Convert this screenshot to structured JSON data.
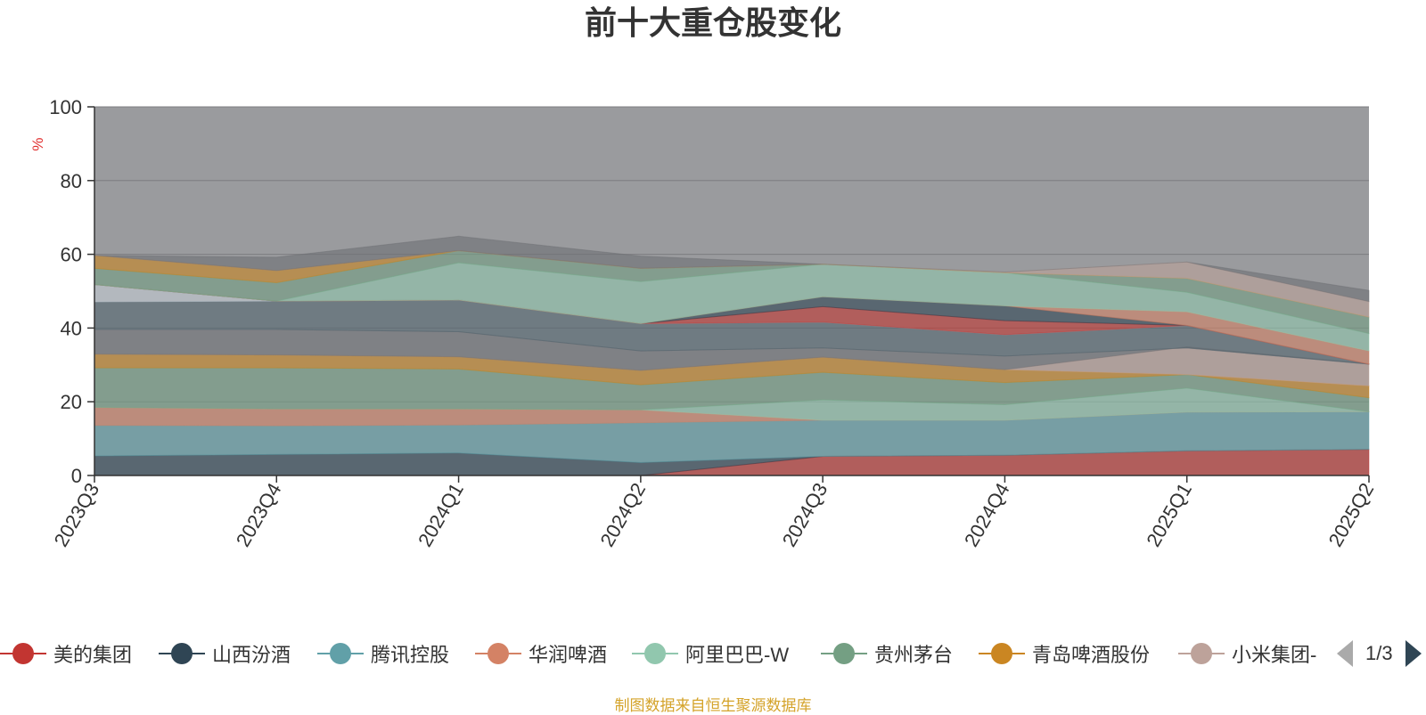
{
  "chart_data": {
    "type": "area",
    "title": "前十大重仓股变化",
    "ylabel": "%",
    "xlabel": "",
    "ylim": [
      0,
      100
    ],
    "yticks": [
      0,
      20,
      40,
      60,
      80,
      100
    ],
    "grid": true,
    "categories": [
      "2023Q3",
      "2023Q4",
      "2024Q1",
      "2024Q2",
      "2024Q3",
      "2024Q4",
      "2025Q1",
      "2025Q2"
    ],
    "series": [
      {
        "name": "美的集团",
        "color": "#c23531",
        "values": [
          0,
          0,
          0,
          0,
          5.2,
          5.5,
          6.7,
          7.1
        ]
      },
      {
        "name": "山西汾酒",
        "color": "#2f4554",
        "values": [
          5.3,
          5.7,
          6.1,
          3.5,
          0,
          0,
          0,
          0
        ]
      },
      {
        "name": "腾讯控股",
        "color": "#61a0a8",
        "values": [
          8.3,
          7.8,
          7.6,
          10.8,
          9.8,
          9.5,
          10.5,
          10.2
        ]
      },
      {
        "name": "华润啤酒",
        "color": "#d48265",
        "values": [
          4.9,
          4.6,
          4.4,
          3.5,
          0,
          0,
          0,
          0
        ]
      },
      {
        "name": "阿里巴巴-W",
        "color": "#91c7ae",
        "values": [
          0,
          0,
          0,
          0,
          5.5,
          4.2,
          6.5,
          0
        ]
      },
      {
        "name": "贵州茅台",
        "color": "#749f83",
        "values": [
          10.7,
          11.1,
          10.8,
          6.8,
          7.5,
          6.0,
          3.7,
          3.8
        ]
      },
      {
        "name": "青岛啤酒股份",
        "color": "#ca8622",
        "values": [
          3.7,
          3.5,
          3.3,
          3.9,
          4.1,
          3.5,
          0,
          3.2
        ]
      },
      {
        "name": "小米集团-W",
        "color": "#bda29a",
        "values": [
          0,
          0,
          0,
          0,
          0,
          0,
          7.5,
          6.0
        ]
      }
    ],
    "extra_series_colors": [
      "#6e7074",
      "#546570",
      "#c4ccd3",
      "#c23531",
      "#2f4554",
      "#d48265",
      "#91c7ae",
      "#749f83",
      "#ca8622",
      "#bda29a"
    ],
    "stack_tops": {
      "L9": [
        39.6,
        39.6,
        39.0,
        33.8,
        34.6,
        32.4,
        34.6,
        30.2
      ],
      "L10": [
        47.1,
        47.3,
        47.6,
        41.2,
        41.6,
        38.2,
        40.7,
        30.2
      ],
      "L11": [
        51.8,
        47.3,
        47.6,
        41.2,
        41.6,
        38.2,
        40.7,
        30.2
      ],
      "L12": [
        51.8,
        47.3,
        47.6,
        41.2,
        45.8,
        42.0,
        40.7,
        30.2
      ],
      "L13": [
        51.8,
        47.3,
        47.6,
        41.2,
        48.5,
        46.0,
        40.7,
        30.2
      ],
      "L14": [
        51.8,
        47.3,
        47.6,
        41.2,
        48.5,
        46.0,
        44.4,
        33.8
      ],
      "L15": [
        51.8,
        47.3,
        57.7,
        52.6,
        57.3,
        55.0,
        49.7,
        38.5
      ],
      "L16": [
        56.2,
        52.3,
        61.0,
        56.2,
        57.3,
        55.0,
        53.5,
        43.0
      ],
      "L17": [
        59.7,
        55.6,
        61.0,
        56.2,
        57.3,
        55.0,
        53.5,
        43.0
      ],
      "L18": [
        59.7,
        55.6,
        61.0,
        56.2,
        57.3,
        55.2,
        57.9,
        47.2
      ],
      "L19": [
        59.7,
        59.2,
        64.9,
        59.5,
        57.3,
        55.2,
        57.9,
        50.2
      ]
    },
    "legend_position": "bottom"
  },
  "legend": {
    "items": [
      {
        "label": "美的集团",
        "color": "#c23531"
      },
      {
        "label": "山西汾酒",
        "color": "#2f4554"
      },
      {
        "label": "腾讯控股",
        "color": "#61a0a8"
      },
      {
        "label": "华润啤酒",
        "color": "#d48265"
      },
      {
        "label": "阿里巴巴-W",
        "color": "#91c7ae"
      },
      {
        "label": "贵州茅台",
        "color": "#749f83"
      },
      {
        "label": "青岛啤酒股份",
        "color": "#ca8622"
      },
      {
        "label": "小米集团-",
        "color": "#bda29a"
      }
    ],
    "page": "1/3"
  },
  "source_note": "制图数据来自恒生聚源数据库"
}
